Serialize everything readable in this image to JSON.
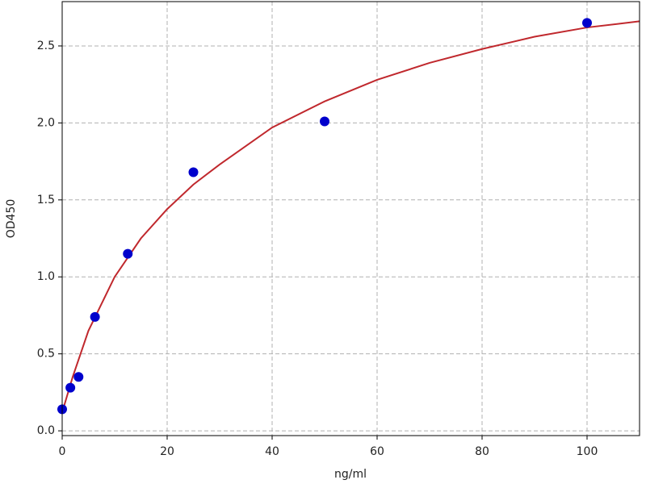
{
  "chart_data": {
    "type": "scatter",
    "xlabel": "ng/ml",
    "ylabel": "OD450",
    "series": [
      {
        "type": "scatter",
        "color": "#0000cc",
        "x": [
          0,
          1.56,
          3.12,
          6.25,
          12.5,
          25,
          50,
          100
        ],
        "values": [
          0.14,
          0.28,
          0.35,
          0.74,
          1.15,
          1.68,
          2.01,
          2.65
        ]
      },
      {
        "type": "line",
        "color": "#c0282d",
        "x": [
          0,
          2,
          5,
          10,
          15,
          20,
          25,
          30,
          40,
          50,
          60,
          70,
          80,
          90,
          100,
          110
        ],
        "values": [
          0.12,
          0.35,
          0.65,
          1.0,
          1.25,
          1.44,
          1.6,
          1.73,
          1.97,
          2.14,
          2.28,
          2.39,
          2.48,
          2.56,
          2.62,
          2.66
        ]
      }
    ],
    "xlim": [
      0,
      110
    ],
    "xticks": [
      0,
      20,
      40,
      60,
      80,
      100
    ],
    "ylim": [
      -0.031,
      2.788
    ],
    "yticks": [
      {
        "value": 0,
        "label": "0.0"
      },
      0.5,
      {
        "value": 1,
        "label": "1.0"
      },
      1.5,
      {
        "value": 2,
        "label": "2.0"
      },
      2.5
    ],
    "grid": true
  }
}
